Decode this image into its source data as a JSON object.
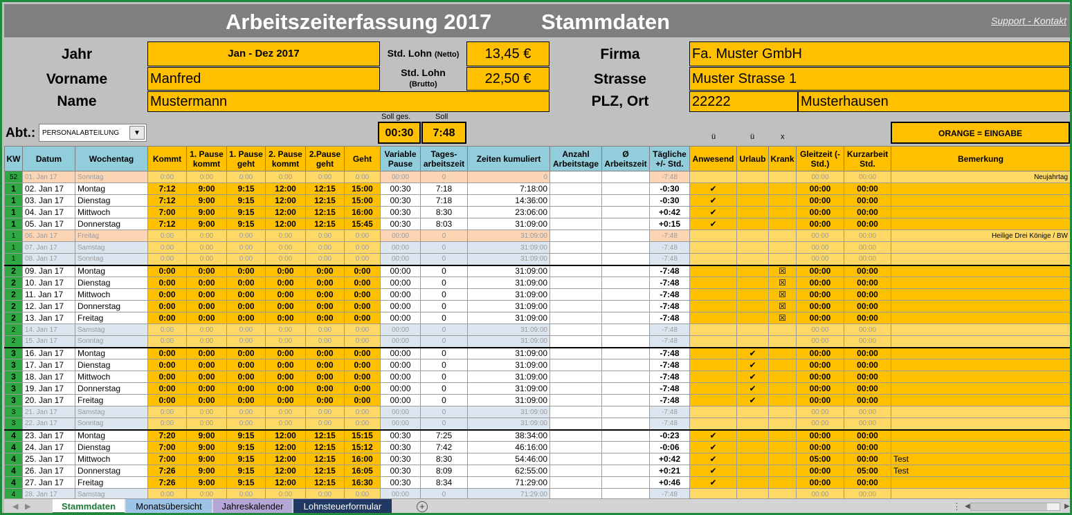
{
  "title": {
    "main": "Arbeitszeiterfassung  2017",
    "sub": "Stammdaten",
    "support": "Support - Kontakt"
  },
  "stamm": {
    "jahr_label": "Jahr",
    "jahr_value": "Jan - Dez 2017",
    "vorname_label": "Vorname",
    "vorname_value": "Manfred",
    "name_label": "Name",
    "name_value": "Mustermann",
    "lohn_netto_label": "Std. Lohn",
    "lohn_netto_sub": "(Netto)",
    "lohn_netto_value": "13,45 €",
    "lohn_brutto_label": "Std. Lohn",
    "lohn_brutto_sub": "(Brutto)",
    "lohn_brutto_value": "22,50 €",
    "firma_label": "Firma",
    "firma_value": "Fa. Muster GmbH",
    "strasse_label": "Strasse",
    "strasse_value": "Muster Strasse 1",
    "plzort_label": "PLZ, Ort",
    "plz_value": "22222",
    "ort_value": "Musterhausen",
    "abt_label": "Abt.:",
    "abt_value": "PERSONALABTEILUNG",
    "soll_ges_label": "Soll ges.",
    "soll_ges_value": "00:30",
    "soll_label": "Soll",
    "soll_value": "7:48",
    "legend": "ORANGE = EINGABE",
    "mark_u1": "ü",
    "mark_u2": "ü",
    "mark_x": "x"
  },
  "headers": [
    "KW",
    "Datum",
    "Wochentag",
    "Kommt",
    "1. Pause kommt",
    "1. Pause geht",
    "2. Pause kommt",
    "2.Pause geht",
    "Geht",
    "Variable Pause",
    "Tages-arbeitszeit",
    "Zeiten kumuliert",
    "Anzahl Arbeitstage",
    "Ø Arbeitszeit",
    "Tägliche +/- Std.",
    "Anwesend",
    "Urlaub",
    "Krank",
    "Gleitzeit (- Std.)",
    "Kurzarbeit Std.",
    "Bemerkung"
  ],
  "rows": [
    {
      "t": "ho",
      "kw": "52",
      "datum": "01. Jan 17",
      "tag": "Sonntag",
      "kommt": "0:00",
      "p1k": "0:00",
      "p1g": "0:00",
      "p2k": "0:00",
      "p2g": "0:00",
      "geht": "0:00",
      "vp": "00:00",
      "ta": "0",
      "kum": "0",
      "diff": "-7:48",
      "anw": "",
      "url": "",
      "kr": "",
      "gl": "00:00",
      "ku": "00:00",
      "bem": "Neujahrtag"
    },
    {
      "t": "wk",
      "kw": "1",
      "datum": "02. Jan 17",
      "tag": "Montag",
      "kommt": "7:12",
      "p1k": "9:00",
      "p1g": "9:15",
      "p2k": "12:00",
      "p2g": "12:15",
      "geht": "15:00",
      "vp": "00:30",
      "ta": "7:18",
      "kum": "7:18:00",
      "diff": "-0:30",
      "anw": "✔",
      "url": "",
      "kr": "",
      "gl": "00:00",
      "ku": "00:00",
      "bem": ""
    },
    {
      "t": "wk",
      "kw": "1",
      "datum": "03. Jan 17",
      "tag": "Dienstag",
      "kommt": "7:12",
      "p1k": "9:00",
      "p1g": "9:15",
      "p2k": "12:00",
      "p2g": "12:15",
      "geht": "15:00",
      "vp": "00:30",
      "ta": "7:18",
      "kum": "14:36:00",
      "diff": "-0:30",
      "anw": "✔",
      "url": "",
      "kr": "",
      "gl": "00:00",
      "ku": "00:00",
      "bem": ""
    },
    {
      "t": "wk",
      "kw": "1",
      "datum": "04. Jan 17",
      "tag": "Mittwoch",
      "kommt": "7:00",
      "p1k": "9:00",
      "p1g": "9:15",
      "p2k": "12:00",
      "p2g": "12:15",
      "geht": "16:00",
      "vp": "00:30",
      "ta": "8:30",
      "kum": "23:06:00",
      "diff": "+0:42",
      "anw": "✔",
      "url": "",
      "kr": "",
      "gl": "00:00",
      "ku": "00:00",
      "bem": ""
    },
    {
      "t": "wk",
      "kw": "1",
      "datum": "05. Jan 17",
      "tag": "Donnerstag",
      "kommt": "7:12",
      "p1k": "9:00",
      "p1g": "9:15",
      "p2k": "12:00",
      "p2g": "12:15",
      "geht": "15:45",
      "vp": "00:30",
      "ta": "8:03",
      "kum": "31:09:00",
      "diff": "+0:15",
      "anw": "✔",
      "url": "",
      "kr": "",
      "gl": "00:00",
      "ku": "00:00",
      "bem": ""
    },
    {
      "t": "ho",
      "kw": "1",
      "datum": "06. Jan 17",
      "tag": "Freitag",
      "kommt": "0:00",
      "p1k": "0:00",
      "p1g": "0:00",
      "p2k": "0:00",
      "p2g": "0:00",
      "geht": "0:00",
      "vp": "00:00",
      "ta": "0",
      "kum": "31:09:00",
      "diff": "-7:48",
      "anw": "",
      "url": "",
      "kr": "",
      "gl": "00:00",
      "ku": "00:00",
      "bem": "Heilige Drei Könige / BW"
    },
    {
      "t": "we",
      "kw": "1",
      "datum": "07. Jan 17",
      "tag": "Samstag",
      "kommt": "0:00",
      "p1k": "0:00",
      "p1g": "0:00",
      "p2k": "0:00",
      "p2g": "0:00",
      "geht": "0:00",
      "vp": "00:00",
      "ta": "0",
      "kum": "31:09:00",
      "diff": "-7:48",
      "anw": "",
      "url": "",
      "kr": "",
      "gl": "00:00",
      "ku": "00:00",
      "bem": ""
    },
    {
      "t": "we",
      "kw": "1",
      "datum": "08. Jan 17",
      "tag": "Sonntag",
      "kommt": "0:00",
      "p1k": "0:00",
      "p1g": "0:00",
      "p2k": "0:00",
      "p2g": "0:00",
      "geht": "0:00",
      "vp": "00:00",
      "ta": "0",
      "kum": "31:09:00",
      "diff": "-7:48",
      "anw": "",
      "url": "",
      "kr": "",
      "gl": "00:00",
      "ku": "00:00",
      "bem": ""
    },
    {
      "t": "wk",
      "kw": "2",
      "datum": "09. Jan 17",
      "tag": "Montag",
      "kommt": "0:00",
      "p1k": "0:00",
      "p1g": "0:00",
      "p2k": "0:00",
      "p2g": "0:00",
      "geht": "0:00",
      "vp": "00:00",
      "ta": "0",
      "kum": "31:09:00",
      "diff": "-7:48",
      "anw": "",
      "url": "",
      "kr": "☒",
      "gl": "00:00",
      "ku": "00:00",
      "bem": "",
      "sep": true
    },
    {
      "t": "wk",
      "kw": "2",
      "datum": "10. Jan 17",
      "tag": "Dienstag",
      "kommt": "0:00",
      "p1k": "0:00",
      "p1g": "0:00",
      "p2k": "0:00",
      "p2g": "0:00",
      "geht": "0:00",
      "vp": "00:00",
      "ta": "0",
      "kum": "31:09:00",
      "diff": "-7:48",
      "anw": "",
      "url": "",
      "kr": "☒",
      "gl": "00:00",
      "ku": "00:00",
      "bem": ""
    },
    {
      "t": "wk",
      "kw": "2",
      "datum": "11. Jan 17",
      "tag": "Mittwoch",
      "kommt": "0:00",
      "p1k": "0:00",
      "p1g": "0:00",
      "p2k": "0:00",
      "p2g": "0:00",
      "geht": "0:00",
      "vp": "00:00",
      "ta": "0",
      "kum": "31:09:00",
      "diff": "-7:48",
      "anw": "",
      "url": "",
      "kr": "☒",
      "gl": "00:00",
      "ku": "00:00",
      "bem": ""
    },
    {
      "t": "wk",
      "kw": "2",
      "datum": "12. Jan 17",
      "tag": "Donnerstag",
      "kommt": "0:00",
      "p1k": "0:00",
      "p1g": "0:00",
      "p2k": "0:00",
      "p2g": "0:00",
      "geht": "0:00",
      "vp": "00:00",
      "ta": "0",
      "kum": "31:09:00",
      "diff": "-7:48",
      "anw": "",
      "url": "",
      "kr": "☒",
      "gl": "00:00",
      "ku": "00:00",
      "bem": ""
    },
    {
      "t": "wk",
      "kw": "2",
      "datum": "13. Jan 17",
      "tag": "Freitag",
      "kommt": "0:00",
      "p1k": "0:00",
      "p1g": "0:00",
      "p2k": "0:00",
      "p2g": "0:00",
      "geht": "0:00",
      "vp": "00:00",
      "ta": "0",
      "kum": "31:09:00",
      "diff": "-7:48",
      "anw": "",
      "url": "",
      "kr": "☒",
      "gl": "00:00",
      "ku": "00:00",
      "bem": ""
    },
    {
      "t": "we",
      "kw": "2",
      "datum": "14. Jan 17",
      "tag": "Samstag",
      "kommt": "0:00",
      "p1k": "0:00",
      "p1g": "0:00",
      "p2k": "0:00",
      "p2g": "0:00",
      "geht": "0:00",
      "vp": "00:00",
      "ta": "0",
      "kum": "31:09:00",
      "diff": "-7:48",
      "anw": "",
      "url": "",
      "kr": "",
      "gl": "00:00",
      "ku": "00:00",
      "bem": ""
    },
    {
      "t": "we",
      "kw": "2",
      "datum": "15. Jan 17",
      "tag": "Sonntag",
      "kommt": "0:00",
      "p1k": "0:00",
      "p1g": "0:00",
      "p2k": "0:00",
      "p2g": "0:00",
      "geht": "0:00",
      "vp": "00:00",
      "ta": "0",
      "kum": "31:09:00",
      "diff": "-7:48",
      "anw": "",
      "url": "",
      "kr": "",
      "gl": "00:00",
      "ku": "00:00",
      "bem": ""
    },
    {
      "t": "wk",
      "kw": "3",
      "datum": "16. Jan 17",
      "tag": "Montag",
      "kommt": "0:00",
      "p1k": "0:00",
      "p1g": "0:00",
      "p2k": "0:00",
      "p2g": "0:00",
      "geht": "0:00",
      "vp": "00:00",
      "ta": "0",
      "kum": "31:09:00",
      "diff": "-7:48",
      "anw": "",
      "url": "✔",
      "kr": "",
      "gl": "00:00",
      "ku": "00:00",
      "bem": "",
      "sep": true
    },
    {
      "t": "wk",
      "kw": "3",
      "datum": "17. Jan 17",
      "tag": "Dienstag",
      "kommt": "0:00",
      "p1k": "0:00",
      "p1g": "0:00",
      "p2k": "0:00",
      "p2g": "0:00",
      "geht": "0:00",
      "vp": "00:00",
      "ta": "0",
      "kum": "31:09:00",
      "diff": "-7:48",
      "anw": "",
      "url": "✔",
      "kr": "",
      "gl": "00:00",
      "ku": "00:00",
      "bem": ""
    },
    {
      "t": "wk",
      "kw": "3",
      "datum": "18. Jan 17",
      "tag": "Mittwoch",
      "kommt": "0:00",
      "p1k": "0:00",
      "p1g": "0:00",
      "p2k": "0:00",
      "p2g": "0:00",
      "geht": "0:00",
      "vp": "00:00",
      "ta": "0",
      "kum": "31:09:00",
      "diff": "-7:48",
      "anw": "",
      "url": "✔",
      "kr": "",
      "gl": "00:00",
      "ku": "00:00",
      "bem": ""
    },
    {
      "t": "wk",
      "kw": "3",
      "datum": "19. Jan 17",
      "tag": "Donnerstag",
      "kommt": "0:00",
      "p1k": "0:00",
      "p1g": "0:00",
      "p2k": "0:00",
      "p2g": "0:00",
      "geht": "0:00",
      "vp": "00:00",
      "ta": "0",
      "kum": "31:09:00",
      "diff": "-7:48",
      "anw": "",
      "url": "✔",
      "kr": "",
      "gl": "00:00",
      "ku": "00:00",
      "bem": ""
    },
    {
      "t": "wk",
      "kw": "3",
      "datum": "20. Jan 17",
      "tag": "Freitag",
      "kommt": "0:00",
      "p1k": "0:00",
      "p1g": "0:00",
      "p2k": "0:00",
      "p2g": "0:00",
      "geht": "0:00",
      "vp": "00:00",
      "ta": "0",
      "kum": "31:09:00",
      "diff": "-7:48",
      "anw": "",
      "url": "✔",
      "kr": "",
      "gl": "00:00",
      "ku": "00:00",
      "bem": ""
    },
    {
      "t": "we",
      "kw": "3",
      "datum": "21. Jan 17",
      "tag": "Samstag",
      "kommt": "0:00",
      "p1k": "0:00",
      "p1g": "0:00",
      "p2k": "0:00",
      "p2g": "0:00",
      "geht": "0:00",
      "vp": "00:00",
      "ta": "0",
      "kum": "31:09:00",
      "diff": "-7:48",
      "anw": "",
      "url": "",
      "kr": "",
      "gl": "00:00",
      "ku": "00:00",
      "bem": ""
    },
    {
      "t": "we",
      "kw": "3",
      "datum": "22. Jan 17",
      "tag": "Sonntag",
      "kommt": "0:00",
      "p1k": "0:00",
      "p1g": "0:00",
      "p2k": "0:00",
      "p2g": "0:00",
      "geht": "0:00",
      "vp": "00:00",
      "ta": "0",
      "kum": "31:09:00",
      "diff": "-7:48",
      "anw": "",
      "url": "",
      "kr": "",
      "gl": "00:00",
      "ku": "00:00",
      "bem": ""
    },
    {
      "t": "wk",
      "kw": "4",
      "datum": "23. Jan 17",
      "tag": "Montag",
      "kommt": "7:20",
      "p1k": "9:00",
      "p1g": "9:15",
      "p2k": "12:00",
      "p2g": "12:15",
      "geht": "15:15",
      "vp": "00:30",
      "ta": "7:25",
      "kum": "38:34:00",
      "diff": "-0:23",
      "anw": "✔",
      "url": "",
      "kr": "",
      "gl": "00:00",
      "ku": "00:00",
      "bem": "",
      "sep": true
    },
    {
      "t": "wk",
      "kw": "4",
      "datum": "24. Jan 17",
      "tag": "Dienstag",
      "kommt": "7:00",
      "p1k": "9:00",
      "p1g": "9:15",
      "p2k": "12:00",
      "p2g": "12:15",
      "geht": "15:12",
      "vp": "00:30",
      "ta": "7:42",
      "kum": "46:16:00",
      "diff": "-0:06",
      "anw": "✔",
      "url": "",
      "kr": "",
      "gl": "00:00",
      "ku": "00:00",
      "bem": ""
    },
    {
      "t": "wk",
      "kw": "4",
      "datum": "25. Jan 17",
      "tag": "Mittwoch",
      "kommt": "7:00",
      "p1k": "9:00",
      "p1g": "9:15",
      "p2k": "12:00",
      "p2g": "12:15",
      "geht": "16:00",
      "vp": "00:30",
      "ta": "8:30",
      "kum": "54:46:00",
      "diff": "+0:42",
      "anw": "✔",
      "url": "",
      "kr": "",
      "gl": "05:00",
      "ku": "00:00",
      "bem": "Test"
    },
    {
      "t": "wk",
      "kw": "4",
      "datum": "26. Jan 17",
      "tag": "Donnerstag",
      "kommt": "7:26",
      "p1k": "9:00",
      "p1g": "9:15",
      "p2k": "12:00",
      "p2g": "12:15",
      "geht": "16:05",
      "vp": "00:30",
      "ta": "8:09",
      "kum": "62:55:00",
      "diff": "+0:21",
      "anw": "✔",
      "url": "",
      "kr": "",
      "gl": "00:00",
      "ku": "05:00",
      "bem": "Test"
    },
    {
      "t": "wk",
      "kw": "4",
      "datum": "27. Jan 17",
      "tag": "Freitag",
      "kommt": "7:26",
      "p1k": "9:00",
      "p1g": "9:15",
      "p2k": "12:00",
      "p2g": "12:15",
      "geht": "16:30",
      "vp": "00:30",
      "ta": "8:34",
      "kum": "71:29:00",
      "diff": "+0:46",
      "anw": "✔",
      "url": "",
      "kr": "",
      "gl": "00:00",
      "ku": "00:00",
      "bem": ""
    },
    {
      "t": "we",
      "kw": "4",
      "datum": "28. Jan 17",
      "tag": "Samstag",
      "kommt": "0:00",
      "p1k": "0:00",
      "p1g": "0:00",
      "p2k": "0:00",
      "p2g": "0:00",
      "geht": "0:00",
      "vp": "00:00",
      "ta": "0",
      "kum": "71:29:00",
      "diff": "-7:48",
      "anw": "",
      "url": "",
      "kr": "",
      "gl": "00:00",
      "ku": "00:00",
      "bem": ""
    }
  ],
  "tabs": [
    {
      "label": "Stammdaten",
      "bg": "#ffffff",
      "fg": "#1e7a34"
    },
    {
      "label": "Monatsübersicht",
      "bg": "#9dc3e6",
      "fg": "#000000"
    },
    {
      "label": "Jahreskalender",
      "bg": "#b4a7d6",
      "fg": "#000000"
    },
    {
      "label": "Lohnsteuerformular",
      "bg": "#1f3864",
      "fg": "#ffffff"
    }
  ],
  "colors": {
    "orange": "#ffc000",
    "header_blue": "#92cddc",
    "kw_green": "#2fa742",
    "title_gray": "#7f7f7f",
    "frame_green": "#1e8a3c"
  }
}
